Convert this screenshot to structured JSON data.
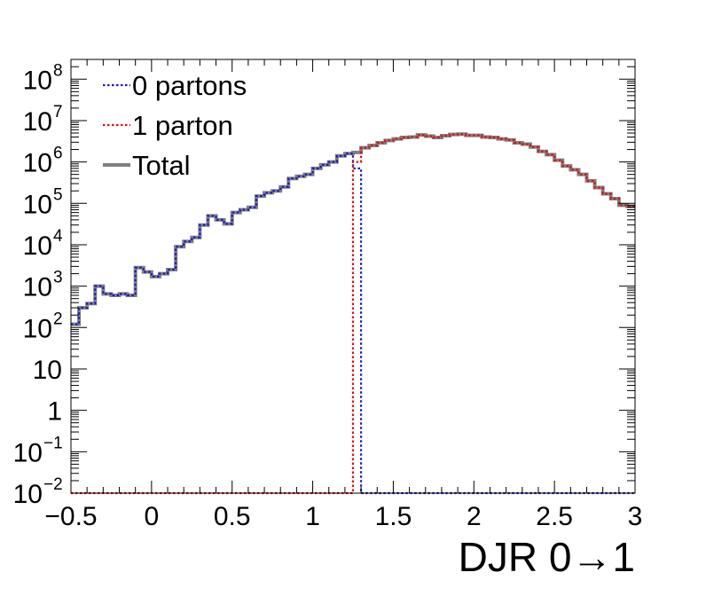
{
  "chart_data": {
    "type": "line",
    "subtype": "step-histogram",
    "title": "",
    "xlabel": "DJR 0→1",
    "ylabel": "",
    "xlim": [
      -0.5,
      3
    ],
    "ylim": [
      0.01,
      300000000
    ],
    "yscale": "log",
    "grid": false,
    "legend_position": "top-left",
    "bin_width": 0.05,
    "x_ticks": [
      {
        "v": -0.5,
        "label": "−0.5"
      },
      {
        "v": 0,
        "label": "0"
      },
      {
        "v": 0.5,
        "label": "0.5"
      },
      {
        "v": 1,
        "label": "1"
      },
      {
        "v": 1.5,
        "label": "1.5"
      },
      {
        "v": 2,
        "label": "2"
      },
      {
        "v": 2.5,
        "label": "2.5"
      },
      {
        "v": 3,
        "label": "3"
      }
    ],
    "y_ticks": [
      {
        "v": 0.01,
        "base": "10",
        "exp": "−2"
      },
      {
        "v": 0.1,
        "base": "10",
        "exp": "−1"
      },
      {
        "v": 1,
        "base": "1",
        "exp": ""
      },
      {
        "v": 10,
        "base": "10",
        "exp": ""
      },
      {
        "v": 100,
        "base": "10",
        "exp": "2"
      },
      {
        "v": 1000,
        "base": "10",
        "exp": "3"
      },
      {
        "v": 10000,
        "base": "10",
        "exp": "4"
      },
      {
        "v": 100000,
        "base": "10",
        "exp": "5"
      },
      {
        "v": 1000000,
        "base": "10",
        "exp": "6"
      },
      {
        "v": 10000000,
        "base": "10",
        "exp": "7"
      },
      {
        "v": 100000000,
        "base": "10",
        "exp": "8"
      }
    ],
    "series": [
      {
        "name": "0 partons",
        "color": "#1a1acc",
        "style": "dotted",
        "bins": [
          {
            "x": -0.5,
            "y": 120
          },
          {
            "x": -0.45,
            "y": 300
          },
          {
            "x": -0.4,
            "y": 380
          },
          {
            "x": -0.35,
            "y": 1000
          },
          {
            "x": -0.3,
            "y": 650
          },
          {
            "x": -0.25,
            "y": 600
          },
          {
            "x": -0.2,
            "y": 650
          },
          {
            "x": -0.15,
            "y": 600
          },
          {
            "x": -0.1,
            "y": 2800
          },
          {
            "x": -0.05,
            "y": 2200
          },
          {
            "x": 0.0,
            "y": 1700
          },
          {
            "x": 0.05,
            "y": 2000
          },
          {
            "x": 0.1,
            "y": 2500
          },
          {
            "x": 0.15,
            "y": 9000
          },
          {
            "x": 0.2,
            "y": 12000
          },
          {
            "x": 0.25,
            "y": 15000
          },
          {
            "x": 0.3,
            "y": 30000
          },
          {
            "x": 0.35,
            "y": 50000
          },
          {
            "x": 0.4,
            "y": 40000
          },
          {
            "x": 0.45,
            "y": 32000
          },
          {
            "x": 0.5,
            "y": 60000
          },
          {
            "x": 0.55,
            "y": 70000
          },
          {
            "x": 0.6,
            "y": 80000
          },
          {
            "x": 0.65,
            "y": 150000
          },
          {
            "x": 0.7,
            "y": 180000
          },
          {
            "x": 0.75,
            "y": 200000
          },
          {
            "x": 0.8,
            "y": 250000
          },
          {
            "x": 0.85,
            "y": 400000
          },
          {
            "x": 0.9,
            "y": 450000
          },
          {
            "x": 0.95,
            "y": 500000
          },
          {
            "x": 1.0,
            "y": 700000
          },
          {
            "x": 1.05,
            "y": 850000
          },
          {
            "x": 1.1,
            "y": 1000000
          },
          {
            "x": 1.15,
            "y": 1400000
          },
          {
            "x": 1.2,
            "y": 1600000
          },
          {
            "x": 1.25,
            "y": 700000
          },
          {
            "x": 1.3,
            "y": 0.01
          },
          {
            "x": 1.35,
            "y": 0.01
          },
          {
            "x": 1.4,
            "y": 0.01
          },
          {
            "x": 1.45,
            "y": 0.01
          },
          {
            "x": 1.5,
            "y": 0.01
          },
          {
            "x": 1.55,
            "y": 0.01
          },
          {
            "x": 1.6,
            "y": 0.01
          },
          {
            "x": 1.65,
            "y": 0.01
          },
          {
            "x": 1.7,
            "y": 0.01
          },
          {
            "x": 1.75,
            "y": 0.01
          },
          {
            "x": 1.8,
            "y": 0.01
          },
          {
            "x": 1.85,
            "y": 0.01
          },
          {
            "x": 1.9,
            "y": 0.01
          },
          {
            "x": 1.95,
            "y": 0.01
          },
          {
            "x": 2.0,
            "y": 0.01
          },
          {
            "x": 2.05,
            "y": 0.01
          },
          {
            "x": 2.1,
            "y": 0.01
          },
          {
            "x": 2.15,
            "y": 0.01
          },
          {
            "x": 2.2,
            "y": 0.01
          },
          {
            "x": 2.25,
            "y": 0.01
          },
          {
            "x": 2.3,
            "y": 0.01
          },
          {
            "x": 2.35,
            "y": 0.01
          },
          {
            "x": 2.4,
            "y": 0.01
          },
          {
            "x": 2.45,
            "y": 0.01
          },
          {
            "x": 2.5,
            "y": 0.01
          },
          {
            "x": 2.55,
            "y": 0.01
          },
          {
            "x": 2.6,
            "y": 0.01
          },
          {
            "x": 2.65,
            "y": 0.01
          },
          {
            "x": 2.7,
            "y": 0.01
          },
          {
            "x": 2.75,
            "y": 0.01
          },
          {
            "x": 2.8,
            "y": 0.01
          },
          {
            "x": 2.85,
            "y": 0.01
          },
          {
            "x": 2.9,
            "y": 0.01
          },
          {
            "x": 2.95,
            "y": 0.01
          }
        ]
      },
      {
        "name": "1 parton",
        "color": "#dd1111",
        "style": "dotted",
        "bins": [
          {
            "x": -0.5,
            "y": 0.01
          },
          {
            "x": -0.45,
            "y": 0.01
          },
          {
            "x": -0.4,
            "y": 0.01
          },
          {
            "x": -0.35,
            "y": 0.01
          },
          {
            "x": -0.3,
            "y": 0.01
          },
          {
            "x": -0.25,
            "y": 0.01
          },
          {
            "x": -0.2,
            "y": 0.01
          },
          {
            "x": -0.15,
            "y": 0.01
          },
          {
            "x": -0.1,
            "y": 0.01
          },
          {
            "x": -0.05,
            "y": 0.01
          },
          {
            "x": 0.0,
            "y": 0.01
          },
          {
            "x": 0.05,
            "y": 0.01
          },
          {
            "x": 0.1,
            "y": 0.01
          },
          {
            "x": 0.15,
            "y": 0.01
          },
          {
            "x": 0.2,
            "y": 0.01
          },
          {
            "x": 0.25,
            "y": 0.01
          },
          {
            "x": 0.3,
            "y": 0.01
          },
          {
            "x": 0.35,
            "y": 0.01
          },
          {
            "x": 0.4,
            "y": 0.01
          },
          {
            "x": 0.45,
            "y": 0.01
          },
          {
            "x": 0.5,
            "y": 0.01
          },
          {
            "x": 0.55,
            "y": 0.01
          },
          {
            "x": 0.6,
            "y": 0.01
          },
          {
            "x": 0.65,
            "y": 0.01
          },
          {
            "x": 0.7,
            "y": 0.01
          },
          {
            "x": 0.75,
            "y": 0.01
          },
          {
            "x": 0.8,
            "y": 0.01
          },
          {
            "x": 0.85,
            "y": 0.01
          },
          {
            "x": 0.9,
            "y": 0.01
          },
          {
            "x": 0.95,
            "y": 0.01
          },
          {
            "x": 1.0,
            "y": 0.01
          },
          {
            "x": 1.05,
            "y": 0.01
          },
          {
            "x": 1.1,
            "y": 0.01
          },
          {
            "x": 1.15,
            "y": 0.01
          },
          {
            "x": 1.2,
            "y": 0.01
          },
          {
            "x": 1.25,
            "y": 1000000
          },
          {
            "x": 1.3,
            "y": 2200000
          },
          {
            "x": 1.35,
            "y": 2500000
          },
          {
            "x": 1.4,
            "y": 2900000
          },
          {
            "x": 1.45,
            "y": 3300000
          },
          {
            "x": 1.5,
            "y": 3600000
          },
          {
            "x": 1.55,
            "y": 3900000
          },
          {
            "x": 1.6,
            "y": 4000000
          },
          {
            "x": 1.65,
            "y": 4500000
          },
          {
            "x": 1.7,
            "y": 4200000
          },
          {
            "x": 1.75,
            "y": 3900000
          },
          {
            "x": 1.8,
            "y": 4300000
          },
          {
            "x": 1.85,
            "y": 4600000
          },
          {
            "x": 1.9,
            "y": 4700000
          },
          {
            "x": 1.95,
            "y": 4400000
          },
          {
            "x": 2.0,
            "y": 4400000
          },
          {
            "x": 2.05,
            "y": 4000000
          },
          {
            "x": 2.1,
            "y": 3900000
          },
          {
            "x": 2.15,
            "y": 3600000
          },
          {
            "x": 2.2,
            "y": 3400000
          },
          {
            "x": 2.25,
            "y": 2900000
          },
          {
            "x": 2.3,
            "y": 2700000
          },
          {
            "x": 2.35,
            "y": 2300000
          },
          {
            "x": 2.4,
            "y": 1800000
          },
          {
            "x": 2.45,
            "y": 1500000
          },
          {
            "x": 2.5,
            "y": 1100000
          },
          {
            "x": 2.55,
            "y": 800000
          },
          {
            "x": 2.6,
            "y": 650000
          },
          {
            "x": 2.65,
            "y": 500000
          },
          {
            "x": 2.7,
            "y": 350000
          },
          {
            "x": 2.75,
            "y": 240000
          },
          {
            "x": 2.8,
            "y": 170000
          },
          {
            "x": 2.85,
            "y": 130000
          },
          {
            "x": 2.9,
            "y": 90000
          },
          {
            "x": 2.95,
            "y": 85000
          }
        ]
      },
      {
        "name": "Total",
        "color": "#808080",
        "style": "solid",
        "bins": [
          {
            "x": -0.5,
            "y": 120
          },
          {
            "x": -0.45,
            "y": 300
          },
          {
            "x": -0.4,
            "y": 380
          },
          {
            "x": -0.35,
            "y": 1000
          },
          {
            "x": -0.3,
            "y": 650
          },
          {
            "x": -0.25,
            "y": 600
          },
          {
            "x": -0.2,
            "y": 650
          },
          {
            "x": -0.15,
            "y": 600
          },
          {
            "x": -0.1,
            "y": 2800
          },
          {
            "x": -0.05,
            "y": 2200
          },
          {
            "x": 0.0,
            "y": 1700
          },
          {
            "x": 0.05,
            "y": 2000
          },
          {
            "x": 0.1,
            "y": 2500
          },
          {
            "x": 0.15,
            "y": 9000
          },
          {
            "x": 0.2,
            "y": 12000
          },
          {
            "x": 0.25,
            "y": 15000
          },
          {
            "x": 0.3,
            "y": 30000
          },
          {
            "x": 0.35,
            "y": 50000
          },
          {
            "x": 0.4,
            "y": 40000
          },
          {
            "x": 0.45,
            "y": 32000
          },
          {
            "x": 0.5,
            "y": 60000
          },
          {
            "x": 0.55,
            "y": 70000
          },
          {
            "x": 0.6,
            "y": 80000
          },
          {
            "x": 0.65,
            "y": 150000
          },
          {
            "x": 0.7,
            "y": 180000
          },
          {
            "x": 0.75,
            "y": 200000
          },
          {
            "x": 0.8,
            "y": 250000
          },
          {
            "x": 0.85,
            "y": 400000
          },
          {
            "x": 0.9,
            "y": 450000
          },
          {
            "x": 0.95,
            "y": 500000
          },
          {
            "x": 1.0,
            "y": 700000
          },
          {
            "x": 1.05,
            "y": 850000
          },
          {
            "x": 1.1,
            "y": 1000000
          },
          {
            "x": 1.15,
            "y": 1400000
          },
          {
            "x": 1.2,
            "y": 1600000
          },
          {
            "x": 1.25,
            "y": 1700000
          },
          {
            "x": 1.3,
            "y": 2200000
          },
          {
            "x": 1.35,
            "y": 2500000
          },
          {
            "x": 1.4,
            "y": 2900000
          },
          {
            "x": 1.45,
            "y": 3300000
          },
          {
            "x": 1.5,
            "y": 3600000
          },
          {
            "x": 1.55,
            "y": 3900000
          },
          {
            "x": 1.6,
            "y": 4000000
          },
          {
            "x": 1.65,
            "y": 4500000
          },
          {
            "x": 1.7,
            "y": 4200000
          },
          {
            "x": 1.75,
            "y": 3900000
          },
          {
            "x": 1.8,
            "y": 4300000
          },
          {
            "x": 1.85,
            "y": 4600000
          },
          {
            "x": 1.9,
            "y": 4700000
          },
          {
            "x": 1.95,
            "y": 4400000
          },
          {
            "x": 2.0,
            "y": 4400000
          },
          {
            "x": 2.05,
            "y": 4000000
          },
          {
            "x": 2.1,
            "y": 3900000
          },
          {
            "x": 2.15,
            "y": 3600000
          },
          {
            "x": 2.2,
            "y": 3400000
          },
          {
            "x": 2.25,
            "y": 2900000
          },
          {
            "x": 2.3,
            "y": 2700000
          },
          {
            "x": 2.35,
            "y": 2300000
          },
          {
            "x": 2.4,
            "y": 1800000
          },
          {
            "x": 2.45,
            "y": 1500000
          },
          {
            "x": 2.5,
            "y": 1100000
          },
          {
            "x": 2.55,
            "y": 800000
          },
          {
            "x": 2.6,
            "y": 650000
          },
          {
            "x": 2.65,
            "y": 500000
          },
          {
            "x": 2.7,
            "y": 350000
          },
          {
            "x": 2.75,
            "y": 240000
          },
          {
            "x": 2.8,
            "y": 170000
          },
          {
            "x": 2.85,
            "y": 130000
          },
          {
            "x": 2.9,
            "y": 90000
          },
          {
            "x": 2.95,
            "y": 85000
          }
        ]
      }
    ]
  }
}
